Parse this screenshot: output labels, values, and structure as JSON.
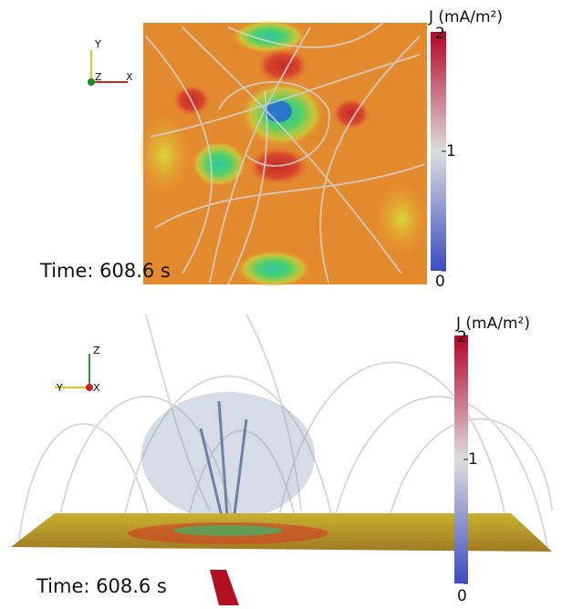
{
  "panels": [
    {
      "colorbar": {
        "title": "J (mA/m²)",
        "range": [
          0,
          2
        ],
        "ticks": [
          0,
          1,
          2
        ]
      },
      "triad": [
        "Y",
        "Z",
        "X"
      ],
      "time": "Time: 608.6 s"
    },
    {
      "colorbar": {
        "title": "J (mA/m²)",
        "range": [
          0,
          2
        ],
        "ticks": [
          0,
          1,
          2
        ]
      },
      "triad": [
        "Z",
        "Y",
        "X"
      ],
      "time": "Time: 608.6 s"
    }
  ]
}
